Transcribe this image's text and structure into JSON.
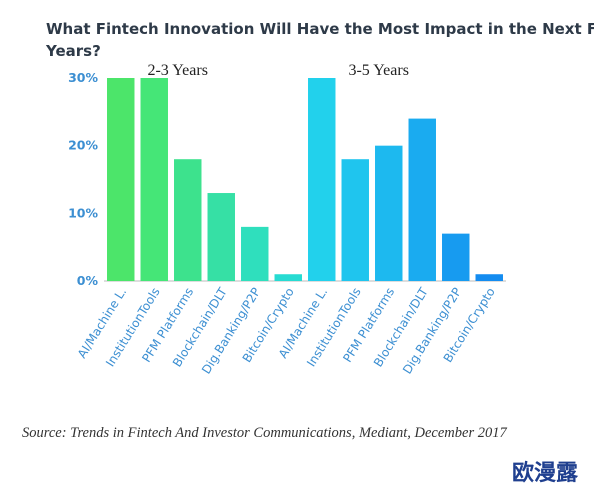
{
  "chart_data": {
    "type": "bar",
    "title": [
      "What Fintech Innovation Will Have the Most Impact in the Next Five",
      "Years?"
    ],
    "categories": [
      "AI/Machine L.",
      "InstitutionTools",
      "PFM Platforms",
      "Blockchain/DLT",
      "Dig.Banking/P2P",
      "Bitcoin/Crypto",
      "AI/Machine L.",
      "InstitutionTools",
      "PFM Platforms",
      "Blockchain/DLT",
      "Dig.Banking/P2P",
      "Bitcoin/Crypto"
    ],
    "values": [
      30,
      30,
      18,
      13,
      8,
      1,
      30,
      18,
      20,
      24,
      7,
      1
    ],
    "colors": [
      "#4ce56a",
      "#45e677",
      "#3de28d",
      "#36e0a5",
      "#2fdfbd",
      "#27dbd2",
      "#22d1ec",
      "#1fc5ee",
      "#1db9ef",
      "#1aabf0",
      "#179bf0",
      "#148cf0"
    ],
    "annotations": [
      "2-3 Years",
      "3-5 Years"
    ],
    "ylim": [
      0,
      30
    ],
    "yticks": [
      {
        "value": 0,
        "label": "0%"
      },
      {
        "value": 10,
        "label": "10%"
      },
      {
        "value": 20,
        "label": "20%"
      },
      {
        "value": 30,
        "label": "30%"
      }
    ],
    "source": "Source: Trends in Fintech And Investor Communications, Mediant, December 2017"
  },
  "watermark": "欧漫露"
}
